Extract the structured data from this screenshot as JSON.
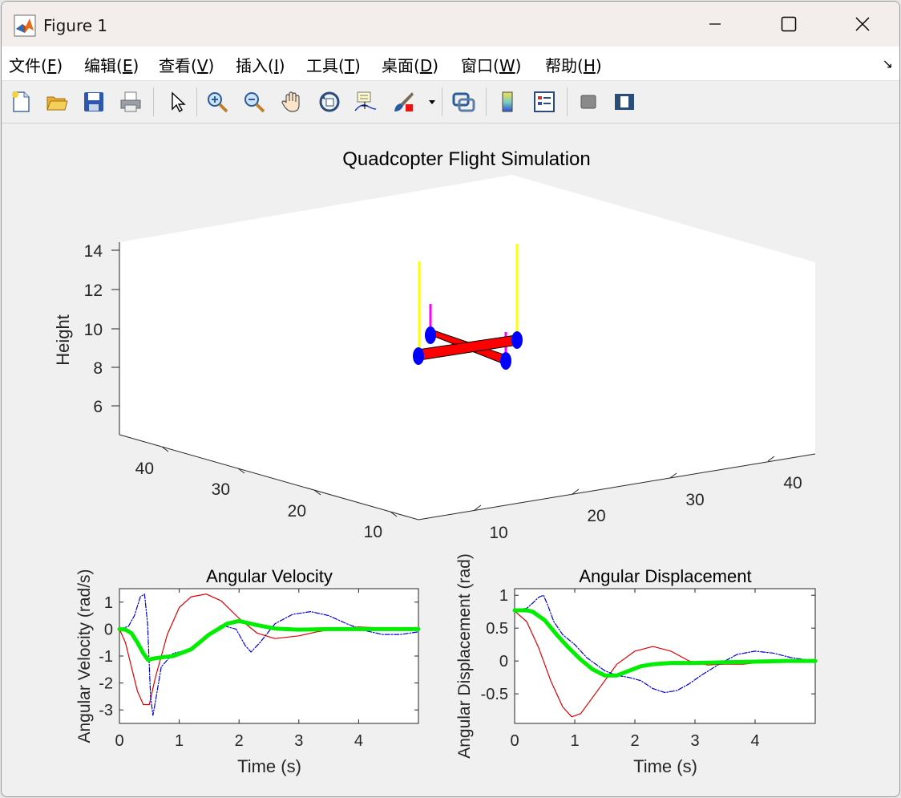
{
  "window": {
    "title": "Figure 1"
  },
  "menu": [
    {
      "label": "文件(",
      "key": "F",
      "tail": ")"
    },
    {
      "label": "编辑(",
      "key": "E",
      "tail": ")"
    },
    {
      "label": "查看(",
      "key": "V",
      "tail": ")"
    },
    {
      "label": "插入(",
      "key": "I",
      "tail": ")"
    },
    {
      "label": "工具(",
      "key": "T",
      "tail": ")"
    },
    {
      "label": "桌面(",
      "key": "D",
      "tail": ")"
    },
    {
      "label": "窗口(",
      "key": "W",
      "tail": ")"
    },
    {
      "label": "帮助(",
      "key": "H",
      "tail": ")"
    }
  ],
  "toolbar_icons": [
    "new-figure-icon",
    "open-folder-icon",
    "save-icon",
    "print-icon",
    "select-arrow-icon",
    "zoom-in-icon",
    "zoom-out-icon",
    "pan-hand-icon",
    "rotate-3d-icon",
    "data-cursor-icon",
    "brush-icon",
    "link-plot-icon",
    "colorbar-icon",
    "legend-icon",
    "hide-plot-tools-icon",
    "show-plot-tools-icon"
  ],
  "colors": {
    "quad_arm": "#ff0000",
    "rotor": "#0000ff",
    "thrust": "#ffff00",
    "torque": "#ff00ff",
    "series_red": "#e00000",
    "series_blue": "#0000dd",
    "series_green": "#00ee00"
  },
  "chart_data": [
    {
      "type": "line",
      "title": "Quadcopter Flight Simulation",
      "zlabel": "Height",
      "zticks": [
        "6",
        "8",
        "10",
        "12",
        "14"
      ],
      "xticks": [
        "10",
        "20",
        "30",
        "40"
      ],
      "yticks": [
        "10",
        "20",
        "30",
        "40"
      ],
      "zlim": [
        4.5,
        14.5
      ]
    },
    {
      "type": "line",
      "title": "Angular Velocity",
      "xlabel": "Time (s)",
      "ylabel": "Angular Velocity (rad/s)",
      "xlim": [
        0,
        5
      ],
      "ylim": [
        -3.5,
        1.5
      ],
      "xticks": [
        0,
        1,
        2,
        3,
        4
      ],
      "yticks": [
        1,
        0,
        -1,
        -2,
        -3
      ],
      "series": [
        {
          "name": "red",
          "color": "#e00000",
          "x": [
            0,
            0.1,
            0.2,
            0.3,
            0.4,
            0.5,
            0.6,
            0.8,
            1.0,
            1.2,
            1.45,
            1.7,
            2.0,
            2.3,
            2.6,
            3.0,
            3.3,
            3.6,
            4.0,
            4.3,
            4.6,
            5.0
          ],
          "y": [
            0,
            -0.5,
            -1.4,
            -2.3,
            -2.8,
            -2.8,
            -1.8,
            -0.2,
            0.8,
            1.2,
            1.3,
            1.05,
            0.4,
            -0.15,
            -0.35,
            -0.25,
            -0.1,
            0.0,
            0.08,
            0.05,
            0.0,
            0.0
          ]
        },
        {
          "name": "blue",
          "color": "#0000dd",
          "x": [
            0,
            0.15,
            0.25,
            0.35,
            0.42,
            0.47,
            0.52,
            0.56,
            0.6,
            0.7,
            0.9,
            1.2,
            1.45,
            1.7,
            1.95,
            2.1,
            2.2,
            2.35,
            2.6,
            2.9,
            3.2,
            3.5,
            3.8,
            4.1,
            4.4,
            4.7,
            5.0
          ],
          "y": [
            0,
            0.1,
            0.5,
            1.2,
            1.3,
            0.2,
            -2.5,
            -3.2,
            -2.7,
            -1.4,
            -0.9,
            -0.75,
            -0.3,
            0.15,
            0.0,
            -0.6,
            -0.85,
            -0.5,
            0.2,
            0.55,
            0.65,
            0.5,
            0.2,
            -0.05,
            -0.2,
            -0.2,
            -0.1
          ]
        },
        {
          "name": "green",
          "color": "#00ee00",
          "x": [
            0,
            0.1,
            0.2,
            0.3,
            0.4,
            0.48,
            0.55,
            0.7,
            0.9,
            1.2,
            1.5,
            1.8,
            2.0,
            2.3,
            2.6,
            3.0,
            3.5,
            4.0,
            4.5,
            5.0
          ],
          "y": [
            0,
            -0.02,
            -0.15,
            -0.5,
            -0.9,
            -1.15,
            -1.1,
            -1.05,
            -1.0,
            -0.75,
            -0.2,
            0.2,
            0.3,
            0.15,
            0.02,
            -0.02,
            0.0,
            0.0,
            0.0,
            0.0
          ]
        }
      ]
    },
    {
      "type": "line",
      "title": "Angular Displacement",
      "xlabel": "Time (s)",
      "ylabel": "Angular Displacement (rad)",
      "xlim": [
        0,
        5
      ],
      "ylim": [
        -0.95,
        1.1
      ],
      "xticks": [
        0,
        1,
        2,
        3,
        4
      ],
      "yticks": [
        "1",
        "0.5",
        "0",
        "-0.5"
      ],
      "ytick_values": [
        1,
        0.5,
        0,
        -0.5
      ],
      "series": [
        {
          "name": "red",
          "color": "#e00000",
          "x": [
            0,
            0.2,
            0.4,
            0.6,
            0.8,
            0.95,
            1.1,
            1.3,
            1.5,
            1.7,
            2.0,
            2.3,
            2.6,
            2.9,
            3.2,
            3.5,
            3.8,
            4.1,
            4.5,
            5.0
          ],
          "y": [
            0.76,
            0.6,
            0.2,
            -0.3,
            -0.7,
            -0.85,
            -0.8,
            -0.55,
            -0.3,
            -0.05,
            0.15,
            0.22,
            0.15,
            0.0,
            -0.06,
            -0.05,
            -0.05,
            -0.02,
            0.0,
            0.0
          ]
        },
        {
          "name": "blue",
          "color": "#0000dd",
          "x": [
            0,
            0.2,
            0.3,
            0.4,
            0.48,
            0.55,
            0.65,
            0.8,
            1.0,
            1.2,
            1.5,
            1.7,
            1.9,
            2.1,
            2.3,
            2.5,
            2.7,
            2.9,
            3.1,
            3.4,
            3.7,
            4.0,
            4.3,
            4.6,
            5.0
          ],
          "y": [
            0.78,
            0.8,
            0.88,
            0.97,
            1.0,
            0.85,
            0.6,
            0.4,
            0.25,
            0.05,
            -0.15,
            -0.22,
            -0.25,
            -0.3,
            -0.42,
            -0.48,
            -0.45,
            -0.35,
            -0.22,
            -0.05,
            0.1,
            0.15,
            0.12,
            0.05,
            0.0
          ]
        },
        {
          "name": "green",
          "color": "#00ee00",
          "x": [
            0,
            0.2,
            0.3,
            0.5,
            0.7,
            0.9,
            1.1,
            1.3,
            1.5,
            1.7,
            1.9,
            2.1,
            2.3,
            2.6,
            3.0,
            3.5,
            4.0,
            4.5,
            5.0
          ],
          "y": [
            0.77,
            0.77,
            0.75,
            0.62,
            0.4,
            0.2,
            0.02,
            -0.13,
            -0.22,
            -0.22,
            -0.15,
            -0.08,
            -0.05,
            -0.03,
            -0.03,
            -0.02,
            -0.01,
            0.0,
            0.0
          ]
        }
      ]
    }
  ]
}
